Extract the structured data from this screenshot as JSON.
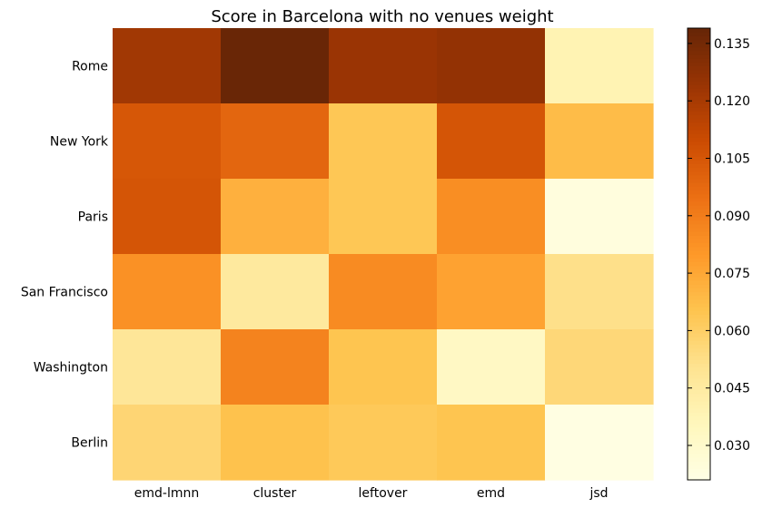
{
  "chart_data": {
    "type": "heatmap",
    "title": "Score in Barcelona with no venues weight",
    "columns": [
      "emd-lmnn",
      "cluster",
      "leftover",
      "emd",
      "jsd"
    ],
    "rows": [
      "Rome",
      "New York",
      "Paris",
      "San Francisco",
      "Washington",
      "Berlin"
    ],
    "values": [
      [
        0.122,
        0.138,
        0.124,
        0.126,
        0.039
      ],
      [
        0.105,
        0.099,
        0.064,
        0.106,
        0.068
      ],
      [
        0.106,
        0.072,
        0.064,
        0.084,
        0.024
      ],
      [
        0.083,
        0.046,
        0.085,
        0.077,
        0.052
      ],
      [
        0.048,
        0.088,
        0.065,
        0.033,
        0.056
      ],
      [
        0.057,
        0.066,
        0.063,
        0.065,
        0.022
      ]
    ],
    "colorbar": {
      "range": [
        0.021,
        0.139
      ],
      "ticks": [
        0.03,
        0.045,
        0.06,
        0.075,
        0.09,
        0.105,
        0.12,
        0.135
      ],
      "tick_labels": [
        "0.030",
        "0.045",
        "0.060",
        "0.075",
        "0.090",
        "0.105",
        "0.120",
        "0.135"
      ],
      "colormap": "YlOrBr"
    },
    "grid": false
  }
}
